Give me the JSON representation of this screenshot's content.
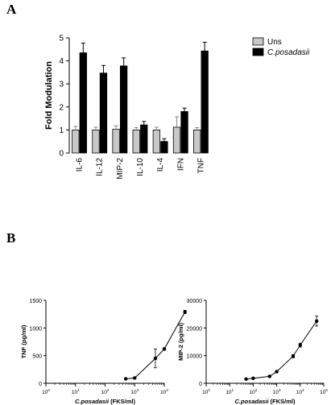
{
  "panels": {
    "a": "A",
    "b": "B"
  },
  "chart_data": [
    {
      "type": "bar",
      "ylabel": "Fold Modulation",
      "ylim": [
        0,
        5
      ],
      "yticks": [
        0,
        1,
        2,
        3,
        4,
        5
      ],
      "categories": [
        "IL-6",
        "IL-12",
        "MIP-2",
        "IL-10",
        "IL-4",
        "IFN",
        "TNF"
      ],
      "series": [
        {
          "name": "Uns",
          "color": "#c8c8c8",
          "values": [
            1.0,
            1.0,
            1.03,
            1.0,
            1.0,
            1.12,
            1.0
          ],
          "errors": [
            0.15,
            0.12,
            0.15,
            0.1,
            0.12,
            0.45,
            0.1
          ]
        },
        {
          "name": "C.posadasii",
          "color": "#000000",
          "values": [
            4.35,
            3.47,
            3.78,
            1.22,
            0.5,
            1.8,
            4.43
          ],
          "errors": [
            0.42,
            0.33,
            0.35,
            0.15,
            0.12,
            0.15,
            0.38
          ]
        }
      ],
      "legend": "top-right",
      "legend_italic": [
        "C.posadasii"
      ]
    },
    {
      "type": "line",
      "xlabel": "C.posadasii (FKS/ml)",
      "xlabel_italic": "C.posadasii",
      "xlabel_normal": " (FKS/ml)",
      "ylabel": "TNF (pg/ml)",
      "xscale": "log",
      "xlim": [
        1,
        10000
      ],
      "xticks": [
        {
          "v": 1,
          "base": "10",
          "exp": "0"
        },
        {
          "v": 10,
          "base": "10",
          "exp": "1"
        },
        {
          "v": 100,
          "base": "10",
          "exp": "2"
        },
        {
          "v": 1000,
          "base": "10",
          "exp": "3"
        },
        {
          "v": 10000,
          "base": "10",
          "exp": "4"
        }
      ],
      "ylim": [
        0,
        1500
      ],
      "yticks": [
        "0",
        "500",
        "1000",
        "1500"
      ],
      "points": [
        {
          "x": 500,
          "y": 80,
          "err": 10
        },
        {
          "x": 1000,
          "y": 95,
          "err": 15
        },
        {
          "x": 5000,
          "y": 450,
          "err": 170
        },
        {
          "x": 10000,
          "y": 620,
          "err": 20
        },
        {
          "x": 50000,
          "y": 1290,
          "err": 30
        }
      ]
    },
    {
      "type": "line",
      "xlabel": "C.posadasii (FKS/ml)",
      "xlabel_italic": "C.posadasii",
      "xlabel_normal": " (FKS/ml)",
      "ylabel": "MIP-2 (pg/ml)",
      "xscale": "log",
      "xlim": [
        1,
        100000
      ],
      "xticks": [
        {
          "v": 1,
          "base": "10",
          "exp": "0"
        },
        {
          "v": 10,
          "base": "10",
          "exp": "1"
        },
        {
          "v": 100,
          "base": "10",
          "exp": "2"
        },
        {
          "v": 1000,
          "base": "10",
          "exp": "3"
        },
        {
          "v": 10000,
          "base": "10",
          "exp": "4"
        },
        {
          "v": 100000,
          "base": "10",
          "exp": "5"
        }
      ],
      "ylim": [
        0,
        30000
      ],
      "yticks": [
        "0",
        "10000",
        "20000",
        "30000"
      ],
      "points": [
        {
          "x": 50,
          "y": 1500,
          "err": 150
        },
        {
          "x": 100,
          "y": 1800,
          "err": 150
        },
        {
          "x": 500,
          "y": 2500,
          "err": 200
        },
        {
          "x": 1000,
          "y": 4200,
          "err": 300
        },
        {
          "x": 5000,
          "y": 9800,
          "err": 600
        },
        {
          "x": 10000,
          "y": 13800,
          "err": 700
        },
        {
          "x": 50000,
          "y": 22500,
          "err": 1800
        }
      ]
    }
  ]
}
